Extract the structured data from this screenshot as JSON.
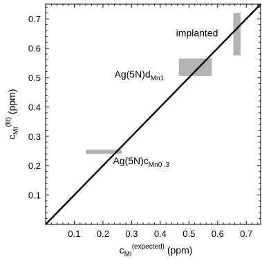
{
  "chart_data": {
    "type": "scatter",
    "title": "",
    "xlabel": {
      "main": "c",
      "sub": "MI",
      "sup": "(expected)",
      "unit": "(ppm)"
    },
    "ylabel": {
      "main": "c",
      "sub": "MI",
      "sup": "(fit)",
      "unit": "(ppm)"
    },
    "xlim": [
      0,
      0.75
    ],
    "ylim": [
      0,
      0.75
    ],
    "x_ticks": [
      "0.1",
      "0.2",
      "0.3",
      "0.4",
      "0.5",
      "0.6",
      "0.7"
    ],
    "y_ticks": [
      "0.1",
      "0.2",
      "0.3",
      "0.4",
      "0.5",
      "0.6",
      "0.7"
    ],
    "reference_line": {
      "from": [
        0,
        0
      ],
      "to": [
        0.75,
        0.75
      ]
    },
    "boxes": [
      {
        "name": "implanted",
        "x": [
          0.655,
          0.68
        ],
        "y": [
          0.575,
          0.72
        ],
        "color": "#b3b3b3"
      },
      {
        "name": "Ag(5N)d_Mn1",
        "x": [
          0.465,
          0.58
        ],
        "y": [
          0.505,
          0.565
        ],
        "color": "#b3b3b3"
      },
      {
        "name": "Ag(5N)c_Mn0.3",
        "x": [
          0.14,
          0.265
        ],
        "y": [
          0.24,
          0.255
        ],
        "color": "#b3b3b3"
      }
    ],
    "annotations": [
      {
        "main": "implanted",
        "sub": "",
        "x": 0.455,
        "y": 0.64
      },
      {
        "main": "Ag(5N)d",
        "sub": "Mn1",
        "x": 0.24,
        "y": 0.5
      },
      {
        "main": "Ag(5N)c",
        "sub": "Mn0 .3",
        "x": 0.235,
        "y": 0.205
      }
    ]
  }
}
